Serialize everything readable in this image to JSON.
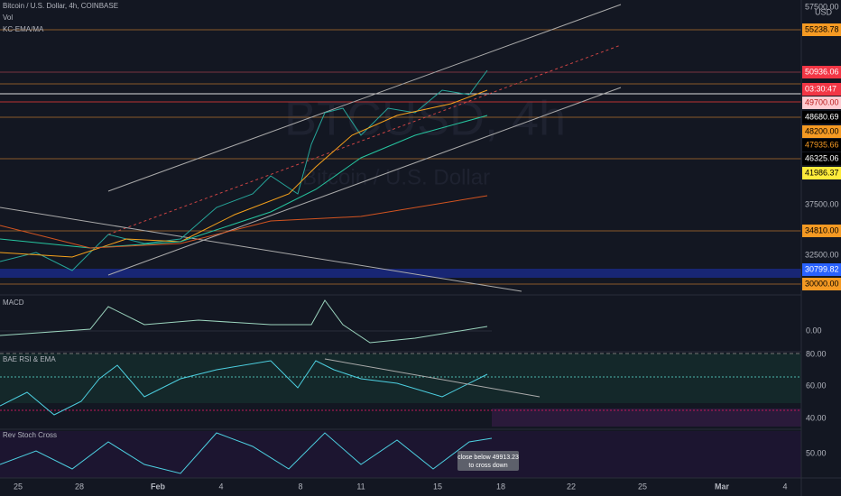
{
  "header": {
    "symbol": "Bitcoin / U.S. Dollar, 4h, COINBASE",
    "volume": "Vol",
    "indicator": "KC-EMA/MA"
  },
  "watermark": {
    "ticker": "BTCUSD, 4h",
    "name": "Bitcoin / U.S. Dollar"
  },
  "price_axis": {
    "currency": "USD",
    "labels": [
      "57500.00",
      "55238.78",
      "50936.06",
      "03:30:47",
      "49700.00",
      "48680.69",
      "48200.00",
      "47935.66",
      "46325.06",
      "41986.37",
      "37500.00",
      "34810.00",
      "32500.00",
      "30799.82",
      "30000.00"
    ]
  },
  "panes": [
    {
      "title": "MACD",
      "labels": [
        "0.00"
      ]
    },
    {
      "title": "BAE RSI & EMA",
      "labels": [
        "80.00",
        "60.00",
        "40.00"
      ]
    },
    {
      "title": "Rev Stoch Cross",
      "labels": [
        "50.00"
      ]
    }
  ],
  "tooltip": [
    "close below 49913.23",
    "to cross down"
  ],
  "time_axis": [
    "25",
    "28",
    "Feb",
    "4",
    "8",
    "11",
    "15",
    "18",
    "22",
    "25",
    "Mar",
    "4"
  ]
}
